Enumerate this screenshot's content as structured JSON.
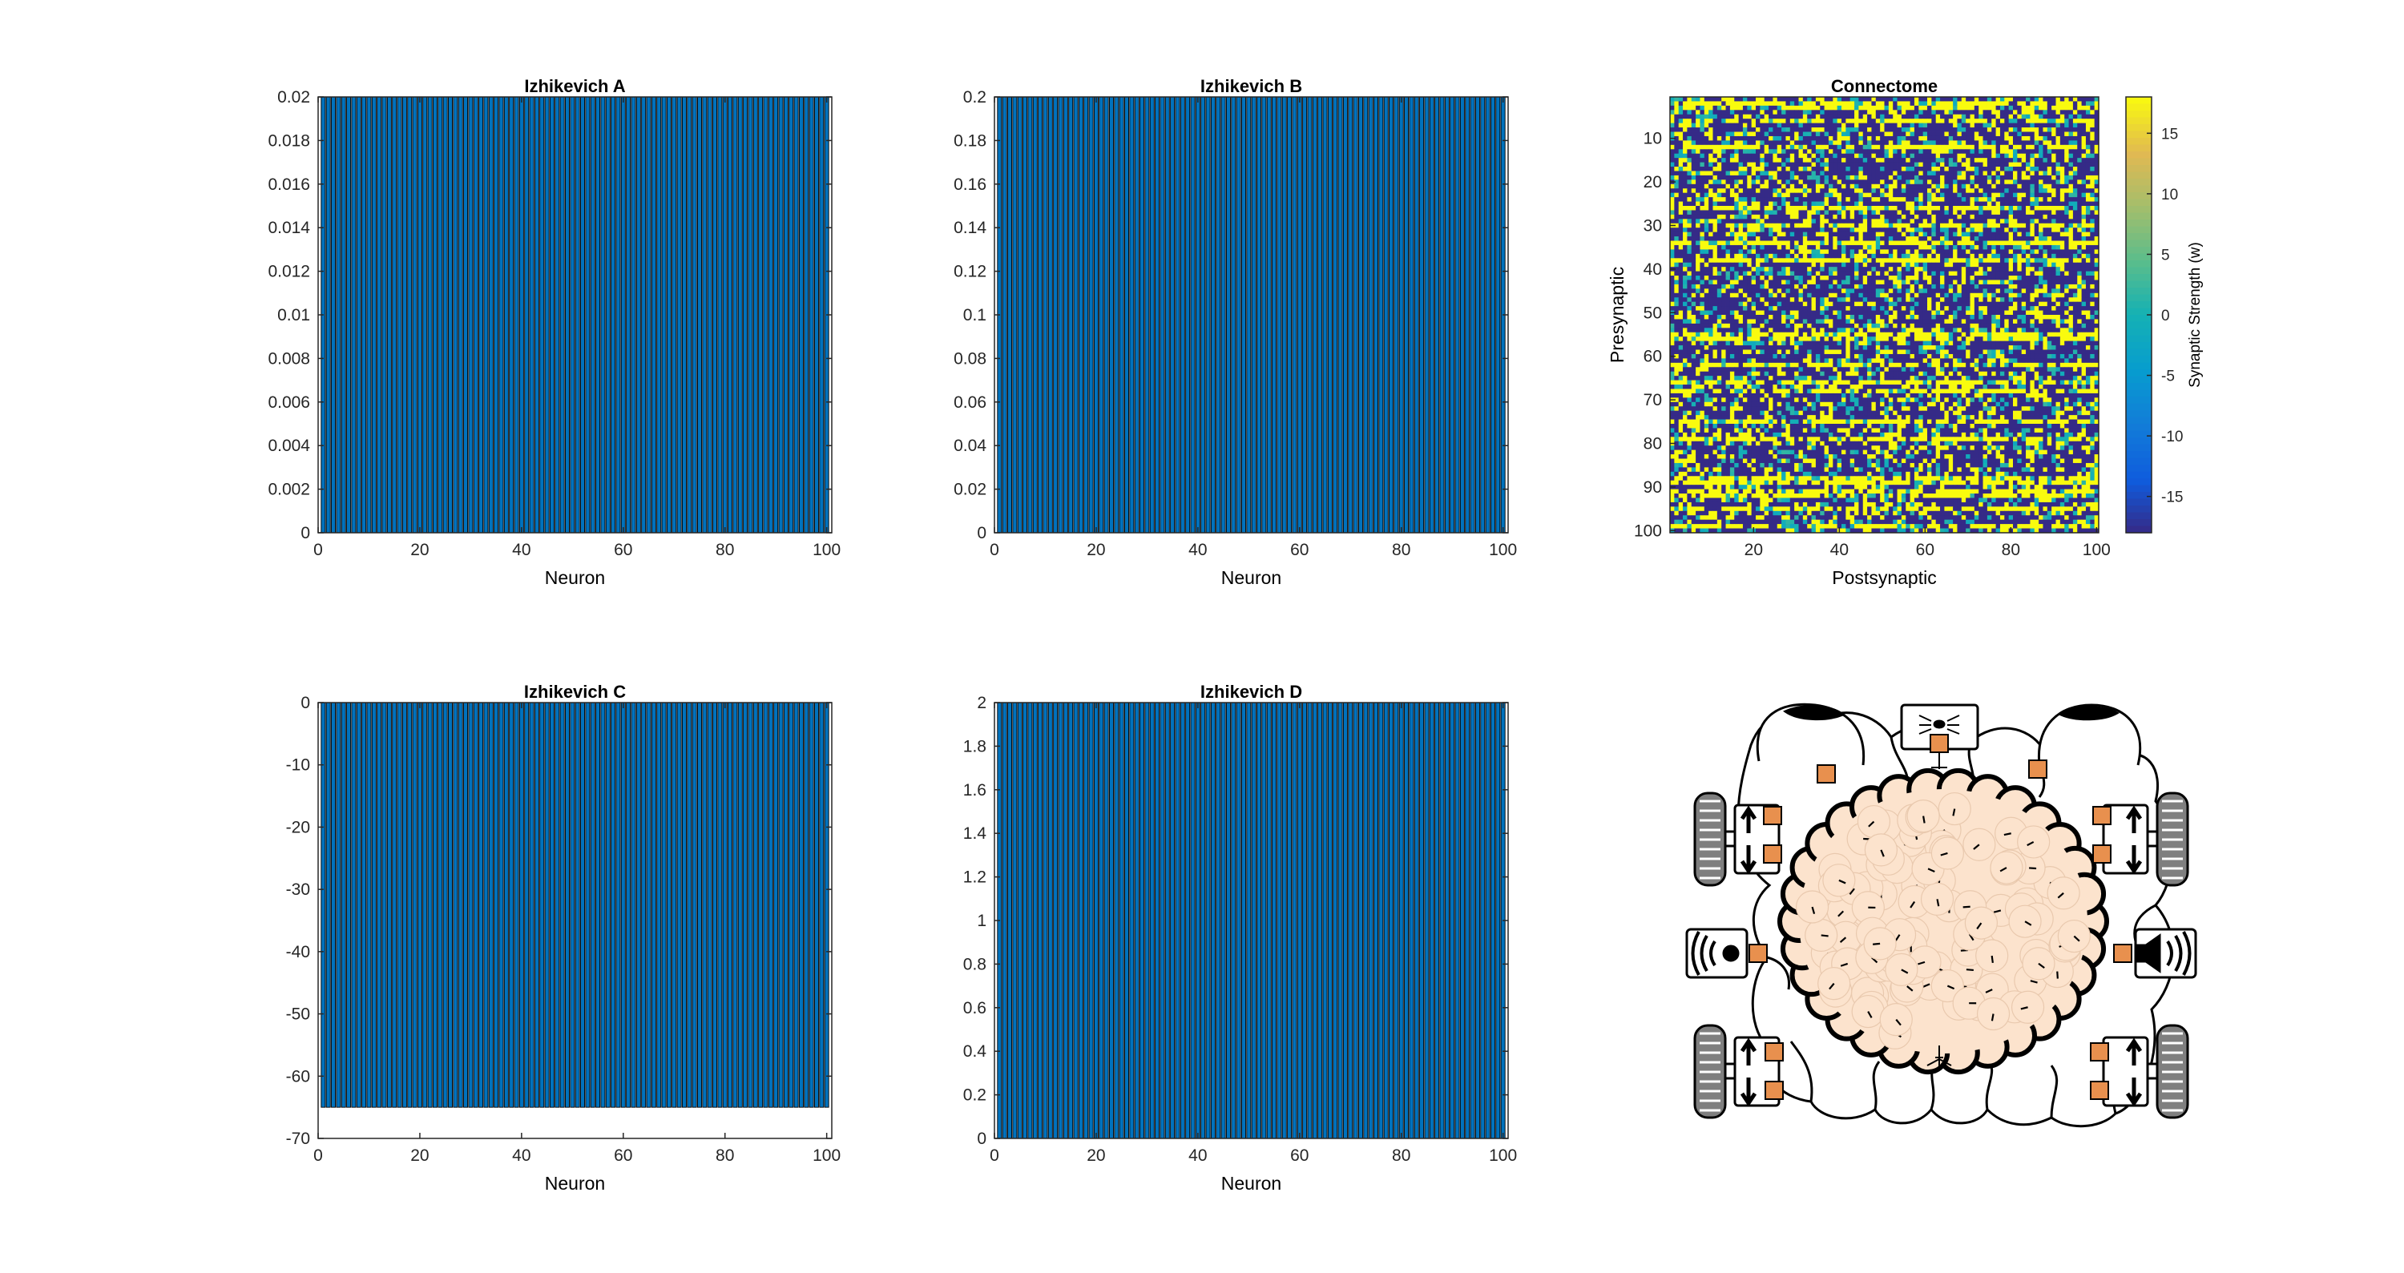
{
  "figure": {
    "background": "#ffffff",
    "bar_color": "#0072bd",
    "bar_edge_color": "#000000"
  },
  "chart_data": [
    {
      "id": "izh-a",
      "type": "bar",
      "title": "Izhikevich A",
      "xlabel": "Neuron",
      "ylabel": "",
      "x": {
        "start": 1,
        "end": 100
      },
      "values": [
        0.02,
        0.02,
        0.02,
        0.02,
        0.02,
        0.02,
        0.02,
        0.02,
        0.02,
        0.02,
        0.02,
        0.02,
        0.02,
        0.02,
        0.02,
        0.02,
        0.02,
        0.02,
        0.02,
        0.02,
        0.02,
        0.02,
        0.02,
        0.02,
        0.02,
        0.02,
        0.02,
        0.02,
        0.02,
        0.02,
        0.02,
        0.02,
        0.02,
        0.02,
        0.02,
        0.02,
        0.02,
        0.02,
        0.02,
        0.02,
        0.02,
        0.02,
        0.02,
        0.02,
        0.02,
        0.02,
        0.02,
        0.02,
        0.02,
        0.02,
        0.02,
        0.02,
        0.02,
        0.02,
        0.02,
        0.02,
        0.02,
        0.02,
        0.02,
        0.02,
        0.02,
        0.02,
        0.02,
        0.02,
        0.02,
        0.02,
        0.02,
        0.02,
        0.02,
        0.02,
        0.02,
        0.02,
        0.02,
        0.02,
        0.02,
        0.02,
        0.02,
        0.02,
        0.02,
        0.02,
        0.02,
        0.02,
        0.02,
        0.02,
        0.02,
        0.02,
        0.02,
        0.02,
        0.02,
        0.02,
        0.02,
        0.02,
        0.02,
        0.02,
        0.02,
        0.02,
        0.02,
        0.02,
        0.02,
        0.02
      ],
      "xlim": [
        0,
        101
      ],
      "ylim": [
        0,
        0.02
      ],
      "xticks": [
        0,
        20,
        40,
        60,
        80,
        100
      ],
      "xtick_labels": [
        "0",
        "20",
        "40",
        "60",
        "80",
        "100"
      ],
      "yticks": [
        0,
        0.002,
        0.004,
        0.006,
        0.008,
        0.01,
        0.012,
        0.014,
        0.016,
        0.018,
        0.02
      ],
      "ytick_labels": [
        "0",
        "0.002",
        "0.004",
        "0.006",
        "0.008",
        "0.01",
        "0.012",
        "0.014",
        "0.016",
        "0.018",
        "0.02"
      ]
    },
    {
      "id": "izh-b",
      "type": "bar",
      "title": "Izhikevich B",
      "xlabel": "Neuron",
      "ylabel": "",
      "x": {
        "start": 1,
        "end": 100
      },
      "values": [
        0.2,
        0.2,
        0.2,
        0.2,
        0.2,
        0.2,
        0.2,
        0.2,
        0.2,
        0.2,
        0.2,
        0.2,
        0.2,
        0.2,
        0.2,
        0.2,
        0.2,
        0.2,
        0.2,
        0.2,
        0.2,
        0.2,
        0.2,
        0.2,
        0.2,
        0.2,
        0.2,
        0.2,
        0.2,
        0.2,
        0.2,
        0.2,
        0.2,
        0.2,
        0.2,
        0.2,
        0.2,
        0.2,
        0.2,
        0.2,
        0.2,
        0.2,
        0.2,
        0.2,
        0.2,
        0.2,
        0.2,
        0.2,
        0.2,
        0.2,
        0.2,
        0.2,
        0.2,
        0.2,
        0.2,
        0.2,
        0.2,
        0.2,
        0.2,
        0.2,
        0.2,
        0.2,
        0.2,
        0.2,
        0.2,
        0.2,
        0.2,
        0.2,
        0.2,
        0.2,
        0.2,
        0.2,
        0.2,
        0.2,
        0.2,
        0.2,
        0.2,
        0.2,
        0.2,
        0.2,
        0.2,
        0.2,
        0.2,
        0.2,
        0.2,
        0.2,
        0.2,
        0.2,
        0.2,
        0.2,
        0.2,
        0.2,
        0.2,
        0.2,
        0.2,
        0.2,
        0.2,
        0.2,
        0.2,
        0.2
      ],
      "xlim": [
        0,
        101
      ],
      "ylim": [
        0,
        0.2
      ],
      "xticks": [
        0,
        20,
        40,
        60,
        80,
        100
      ],
      "xtick_labels": [
        "0",
        "20",
        "40",
        "60",
        "80",
        "100"
      ],
      "yticks": [
        0,
        0.02,
        0.04,
        0.06,
        0.08,
        0.1,
        0.12,
        0.14,
        0.16,
        0.18,
        0.2
      ],
      "ytick_labels": [
        "0",
        "0.02",
        "0.04",
        "0.06",
        "0.08",
        "0.1",
        "0.12",
        "0.14",
        "0.16",
        "0.18",
        "0.2"
      ]
    },
    {
      "id": "izh-c",
      "type": "bar",
      "title": "Izhikevich C",
      "xlabel": "Neuron",
      "ylabel": "",
      "x": {
        "start": 1,
        "end": 100
      },
      "values": [
        -65,
        -65,
        -65,
        -65,
        -65,
        -65,
        -65,
        -65,
        -65,
        -65,
        -65,
        -65,
        -65,
        -65,
        -65,
        -65,
        -65,
        -65,
        -65,
        -65,
        -65,
        -65,
        -65,
        -65,
        -65,
        -65,
        -65,
        -65,
        -65,
        -65,
        -65,
        -65,
        -65,
        -65,
        -65,
        -65,
        -65,
        -65,
        -65,
        -65,
        -65,
        -65,
        -65,
        -65,
        -65,
        -65,
        -65,
        -65,
        -65,
        -65,
        -65,
        -65,
        -65,
        -65,
        -65,
        -65,
        -65,
        -65,
        -65,
        -65,
        -65,
        -65,
        -65,
        -65,
        -65,
        -65,
        -65,
        -65,
        -65,
        -65,
        -65,
        -65,
        -65,
        -65,
        -65,
        -65,
        -65,
        -65,
        -65,
        -65,
        -65,
        -65,
        -65,
        -65,
        -65,
        -65,
        -65,
        -65,
        -65,
        -65,
        -65,
        -65,
        -65,
        -65,
        -65,
        -65,
        -65,
        -65,
        -65,
        -65
      ],
      "xlim": [
        0,
        101
      ],
      "ylim": [
        -70,
        0
      ],
      "xticks": [
        0,
        20,
        40,
        60,
        80,
        100
      ],
      "xtick_labels": [
        "0",
        "20",
        "40",
        "60",
        "80",
        "100"
      ],
      "yticks": [
        -70,
        -60,
        -50,
        -40,
        -30,
        -20,
        -10,
        0
      ],
      "ytick_labels": [
        "-70",
        "-60",
        "-50",
        "-40",
        "-30",
        "-20",
        "-10",
        "0"
      ]
    },
    {
      "id": "izh-d",
      "type": "bar",
      "title": "Izhikevich D",
      "xlabel": "Neuron",
      "ylabel": "",
      "x": {
        "start": 1,
        "end": 100
      },
      "values": [
        2,
        2,
        2,
        2,
        2,
        2,
        2,
        2,
        2,
        2,
        2,
        2,
        2,
        2,
        2,
        2,
        2,
        2,
        2,
        2,
        2,
        2,
        2,
        2,
        2,
        2,
        2,
        2,
        2,
        2,
        2,
        2,
        2,
        2,
        2,
        2,
        2,
        2,
        2,
        2,
        2,
        2,
        2,
        2,
        2,
        2,
        2,
        2,
        2,
        2,
        2,
        2,
        2,
        2,
        2,
        2,
        2,
        2,
        2,
        2,
        2,
        2,
        2,
        2,
        2,
        2,
        2,
        2,
        2,
        2,
        2,
        2,
        2,
        2,
        2,
        2,
        2,
        2,
        2,
        2,
        2,
        2,
        2,
        2,
        2,
        2,
        2,
        2,
        2,
        2,
        2,
        2,
        2,
        2,
        2,
        2,
        2,
        2,
        2,
        2
      ],
      "xlim": [
        0,
        101
      ],
      "ylim": [
        0,
        2
      ],
      "xticks": [
        0,
        20,
        40,
        60,
        80,
        100
      ],
      "xtick_labels": [
        "0",
        "20",
        "40",
        "60",
        "80",
        "100"
      ],
      "yticks": [
        0,
        0.2,
        0.4,
        0.6,
        0.8,
        1,
        1.2,
        1.4,
        1.6,
        1.8,
        2
      ],
      "ytick_labels": [
        "0",
        "0.2",
        "0.4",
        "0.6",
        "0.8",
        "1",
        "1.2",
        "1.4",
        "1.6",
        "1.8",
        "2"
      ]
    },
    {
      "id": "connectome",
      "type": "heatmap",
      "title": "Connectome",
      "xlabel": "Postsynaptic",
      "ylabel": "Presynaptic",
      "rows": 100,
      "cols": 100,
      "xlim": [
        0.5,
        100.5
      ],
      "ylim": [
        0.5,
        100.5
      ],
      "xticks": [
        20,
        40,
        60,
        80,
        100
      ],
      "xtick_labels": [
        "20",
        "40",
        "60",
        "80",
        "100"
      ],
      "yticks": [
        10,
        20,
        30,
        40,
        50,
        60,
        70,
        80,
        90,
        100
      ],
      "ytick_labels": [
        "10",
        "20",
        "30",
        "40",
        "50",
        "60",
        "70",
        "80",
        "90",
        "100"
      ],
      "colorbar": {
        "label": "Synaptic Strength (w)",
        "clim": [
          -18,
          18
        ],
        "ticks": [
          -15,
          -10,
          -5,
          0,
          5,
          10,
          15
        ],
        "tick_labels": [
          "-15",
          "-10",
          "-5",
          "0",
          "5",
          "10",
          "15"
        ],
        "colormap": "parula"
      },
      "note": "Cell values are a random mixture of strongly negative (about -18), near zero and strongly positive (about +18) synaptic weights; several presynaptic rows are mostly positive."
    }
  ],
  "brain_illustration": {
    "colors": {
      "outline": "#000000",
      "body_fill": "#ffffff",
      "neuron_fill": "#fce3cd",
      "sensor_fill": "#e8904e",
      "wheel_fill": "#7f7f7f",
      "eye_fill": "#000000"
    },
    "icons": [
      "eye-icon",
      "camera-icon",
      "wheel-icon",
      "motor-arrows-icon",
      "microphone-icon",
      "speaker-icon",
      "neuron-cluster-icon"
    ]
  }
}
